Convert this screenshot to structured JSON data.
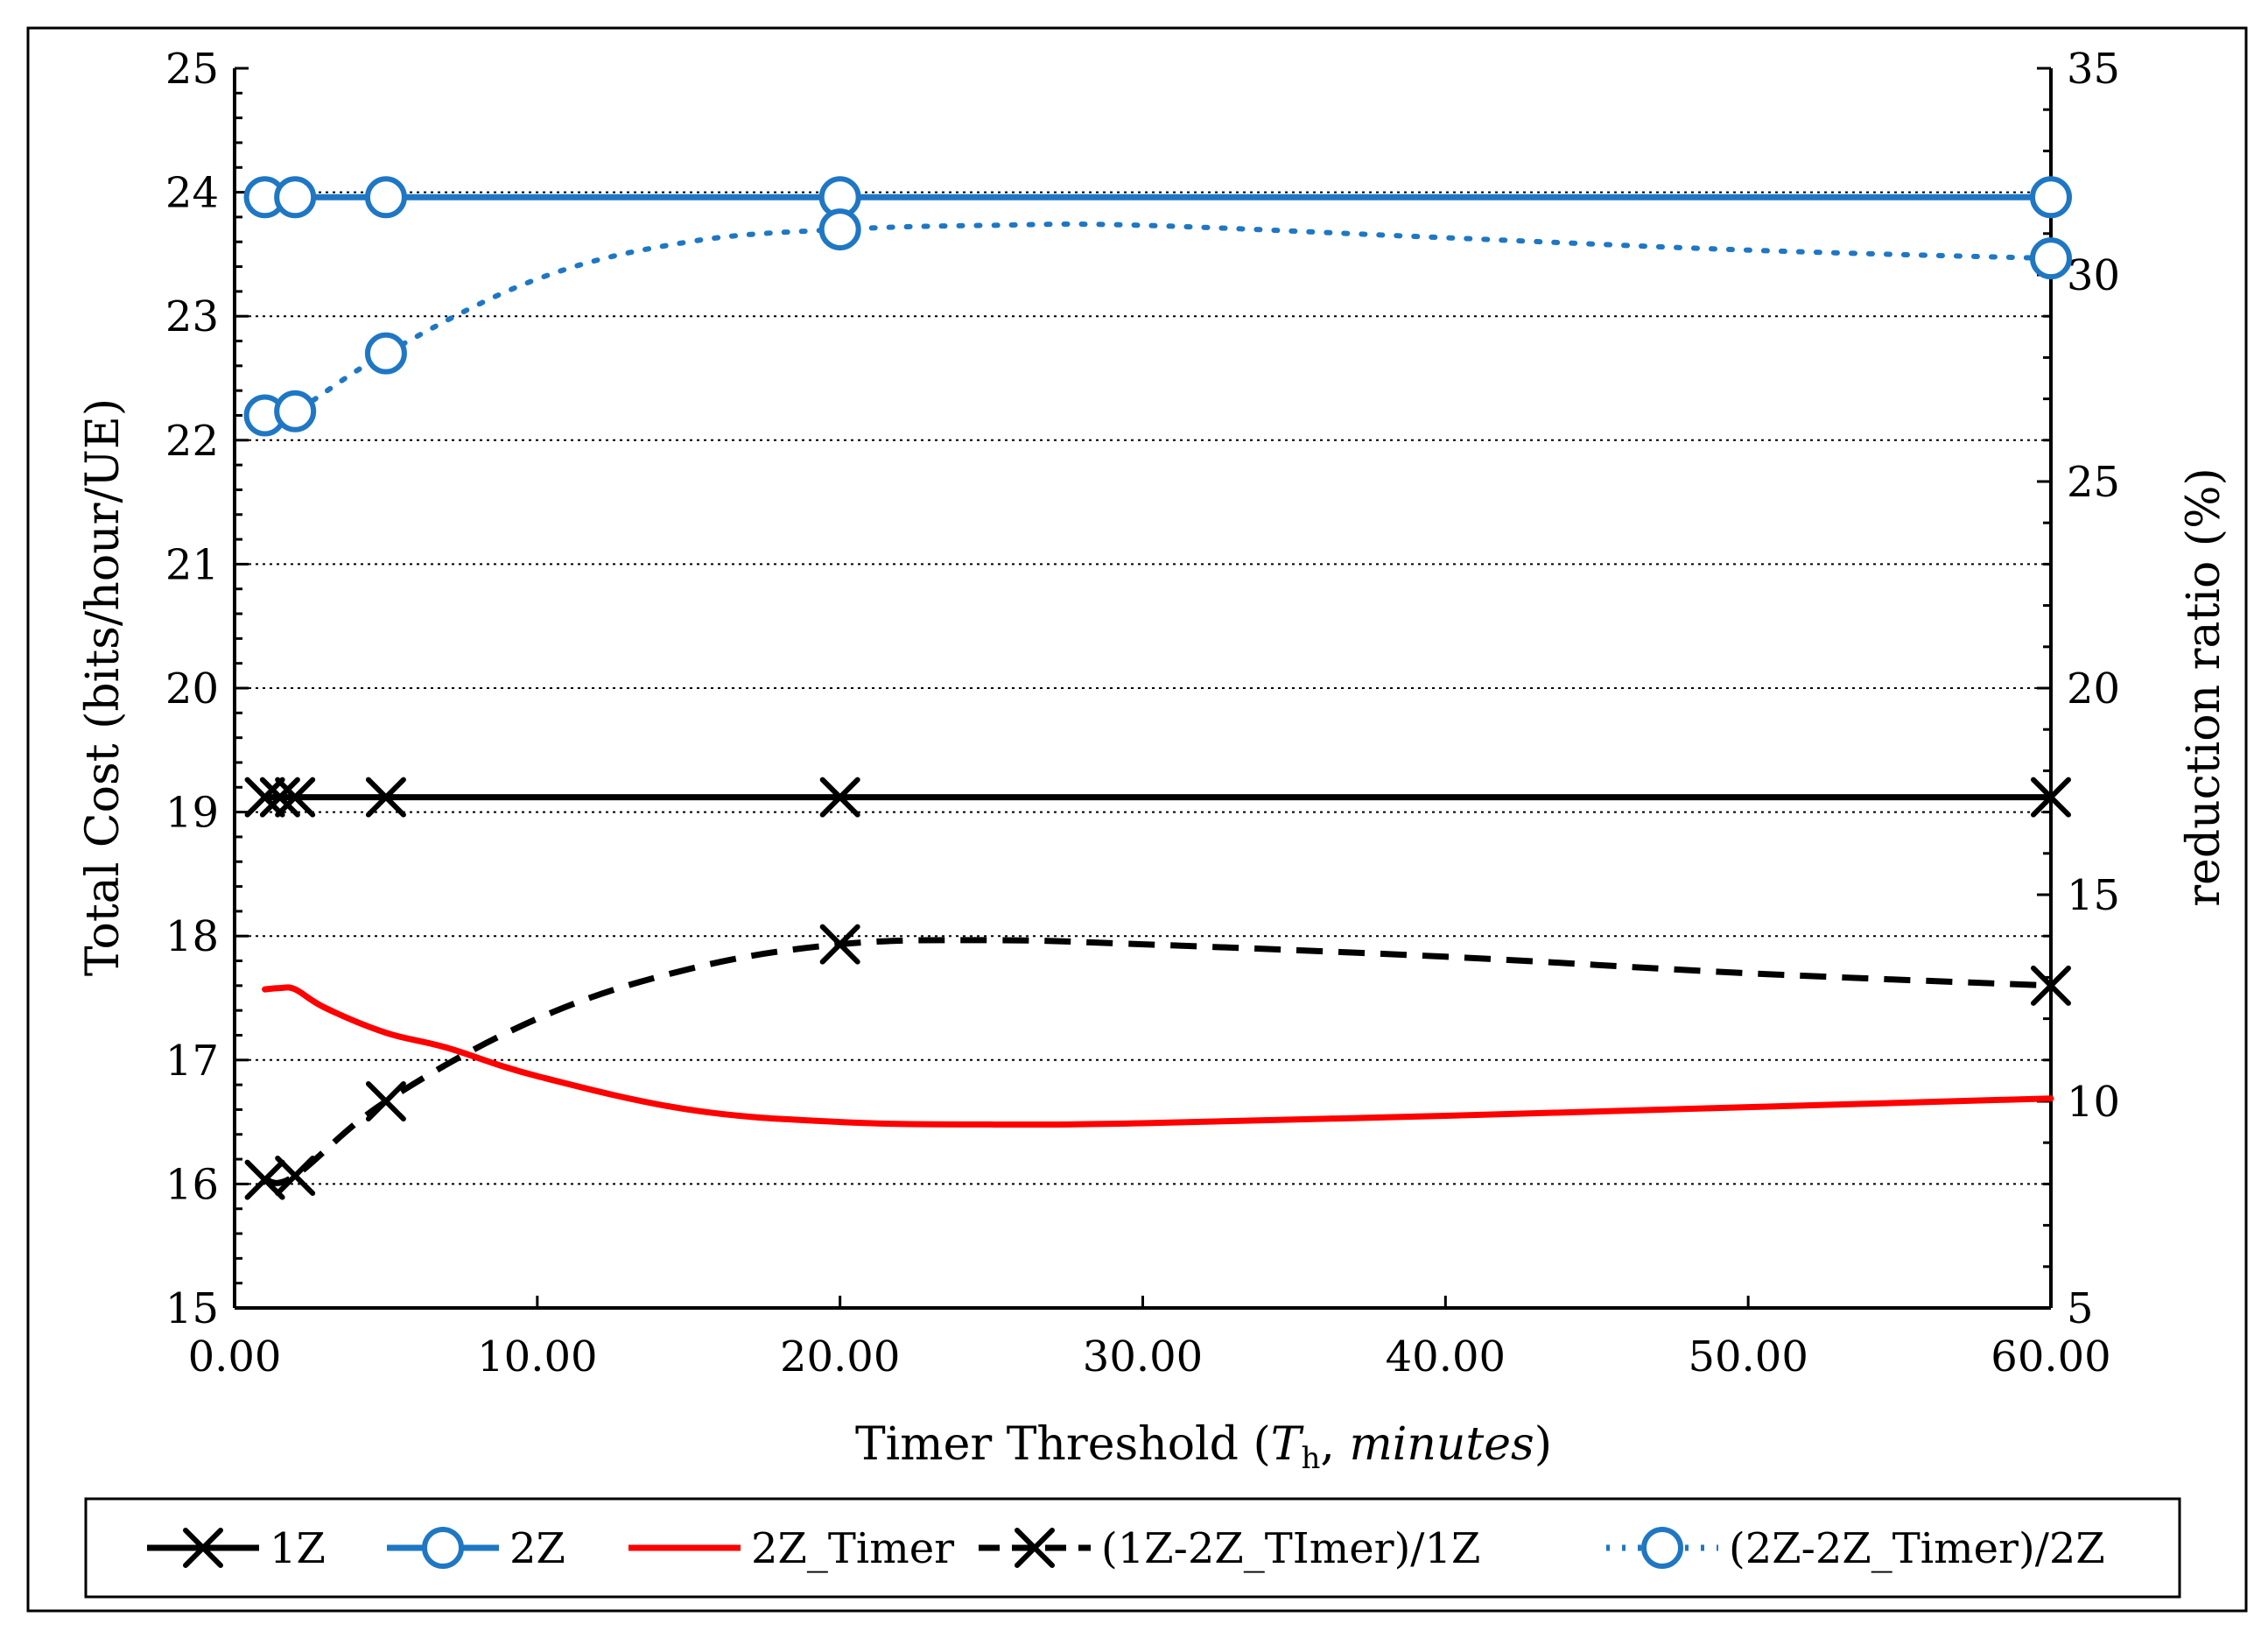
{
  "chart_data": {
    "type": "line",
    "title": "",
    "xlabel_main": "Timer Threshold (",
    "xlabel_sym": "T",
    "xlabel_sub": "h",
    "xlabel_comma": ", ",
    "xlabel_italic": "minutes",
    "xlabel_close": ")",
    "ylabel_left": "Total Cost (bits/hour/UE)",
    "ylabel_right": "reduction ratio (%)",
    "xlim": [
      0,
      60
    ],
    "ylim_left": [
      15,
      25
    ],
    "ylim_right": [
      5,
      35
    ],
    "x_ticks": [
      0,
      10,
      20,
      30,
      40,
      50,
      60
    ],
    "x_tick_labels": [
      "0.00",
      "10.00",
      "20.00",
      "30.00",
      "40.00",
      "50.00",
      "60.00"
    ],
    "y_left_ticks": [
      15,
      16,
      17,
      18,
      19,
      20,
      21,
      22,
      23,
      24,
      25
    ],
    "y_left_tick_labels": [
      "15",
      "16",
      "17",
      "18",
      "19",
      "20",
      "21",
      "22",
      "23",
      "24",
      "25"
    ],
    "y_right_ticks": [
      5,
      10,
      15,
      20,
      25,
      30,
      35
    ],
    "y_right_tick_labels": [
      "5",
      "10",
      "15",
      "20",
      "25",
      "30",
      "35"
    ],
    "grid": "horizontal dotted",
    "legend_position": "bottom",
    "series": [
      {
        "name": "1Z",
        "axis": "left",
        "color": "#000000",
        "style": "solid",
        "marker": "x",
        "x": [
          1,
          1.5,
          2,
          5,
          20,
          60
        ],
        "values": [
          19.12,
          19.12,
          19.12,
          19.12,
          19.12,
          19.12
        ],
        "marker_x": [
          1,
          1.5,
          2,
          5,
          20,
          60
        ]
      },
      {
        "name": "2Z",
        "axis": "left",
        "color": "#1f77c4",
        "style": "solid",
        "marker": "o",
        "x": [
          1,
          2,
          5,
          20,
          60
        ],
        "values": [
          23.96,
          23.96,
          23.96,
          23.96,
          23.96
        ],
        "marker_x": [
          1,
          2,
          5,
          20,
          60
        ]
      },
      {
        "name": "2Z_Timer",
        "axis": "left",
        "color": "#ff0000",
        "style": "solid",
        "marker": "none",
        "x": [
          1,
          1.5,
          2,
          3,
          5,
          7,
          10,
          15,
          20,
          25,
          30,
          40,
          50,
          60
        ],
        "values": [
          17.57,
          17.58,
          17.57,
          17.42,
          17.22,
          17.1,
          16.87,
          16.6,
          16.5,
          16.48,
          16.49,
          16.55,
          16.62,
          16.69
        ],
        "marker_x": []
      },
      {
        "name": "(1Z-2Z_TImer)/1Z",
        "axis": "right",
        "color": "#000000",
        "style": "dashed",
        "marker": "x",
        "x": [
          1,
          2,
          5,
          10,
          15,
          20,
          25,
          30,
          40,
          50,
          60
        ],
        "values": [
          8.1,
          8.2,
          10.0,
          12.0,
          13.2,
          13.8,
          13.9,
          13.8,
          13.5,
          13.1,
          12.8
        ],
        "marker_x": [
          1,
          2,
          5,
          20,
          60
        ]
      },
      {
        "name": "(2Z-2Z_Timer)/2Z",
        "axis": "right",
        "color": "#1f77c4",
        "style": "dotted",
        "marker": "o",
        "x": [
          1,
          2,
          5,
          10,
          15,
          20,
          25,
          30,
          40,
          50,
          60
        ],
        "values": [
          26.6,
          26.7,
          28.1,
          29.9,
          30.8,
          31.1,
          31.2,
          31.2,
          30.9,
          30.6,
          30.4
        ],
        "marker_x": [
          1,
          2,
          5,
          20,
          60
        ]
      }
    ]
  }
}
